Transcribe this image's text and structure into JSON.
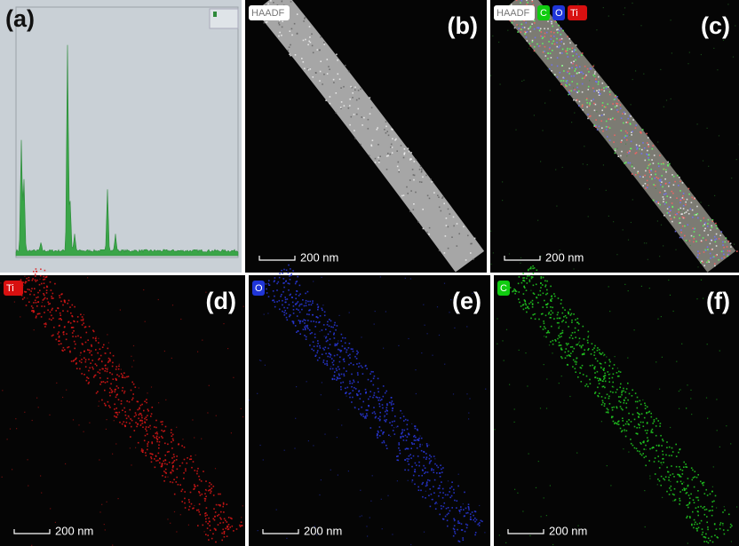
{
  "panels": [
    {
      "label": "(a)"
    },
    {
      "label": "(b)",
      "badges": [
        "HAADF"
      ],
      "scale_bar": "200 nm"
    },
    {
      "label": "(c)",
      "badges": [
        "HAADF",
        "C",
        "O",
        "Ti"
      ],
      "scale_bar": "200 nm"
    },
    {
      "label": "(d)",
      "badges": [
        "Ti"
      ],
      "scale_bar": "200 nm"
    },
    {
      "label": "(e)",
      "badges": [
        "O"
      ],
      "scale_bar": "200 nm"
    },
    {
      "label": "(f)",
      "badges": [
        "C"
      ],
      "scale_bar": "200 nm"
    }
  ]
}
